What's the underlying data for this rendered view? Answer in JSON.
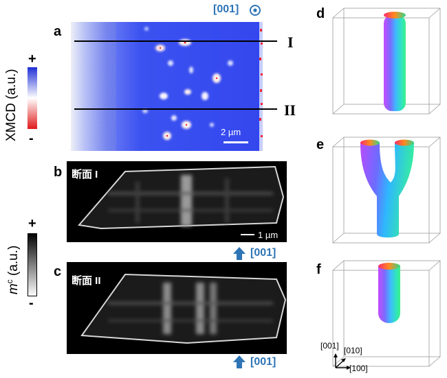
{
  "panel_labels": {
    "a": "a",
    "b": "b",
    "c": "c",
    "d": "d",
    "e": "e",
    "f": "f"
  },
  "xmcd_axis": {
    "label": "XMCD (a.u.)",
    "plus": "+",
    "minus": "-",
    "colors": [
      "#1f2fd6",
      "#ffffff",
      "#e01a1a"
    ]
  },
  "mc_axis": {
    "label_italic": "m",
    "label_sup": "c",
    "label_rest": " (a.u.)",
    "plus": "+",
    "minus": "-"
  },
  "panel_a": {
    "direction": "[001]",
    "line_I": "I",
    "line_II": "II",
    "scale": "2 µm"
  },
  "panel_b": {
    "title": "断面 I",
    "scale": "1 µm",
    "direction": "[001]"
  },
  "panel_c": {
    "title": "断面 II",
    "direction": "[001]"
  },
  "axes_3d": {
    "x": "[100]",
    "y": "[010]",
    "z": "[001]"
  }
}
